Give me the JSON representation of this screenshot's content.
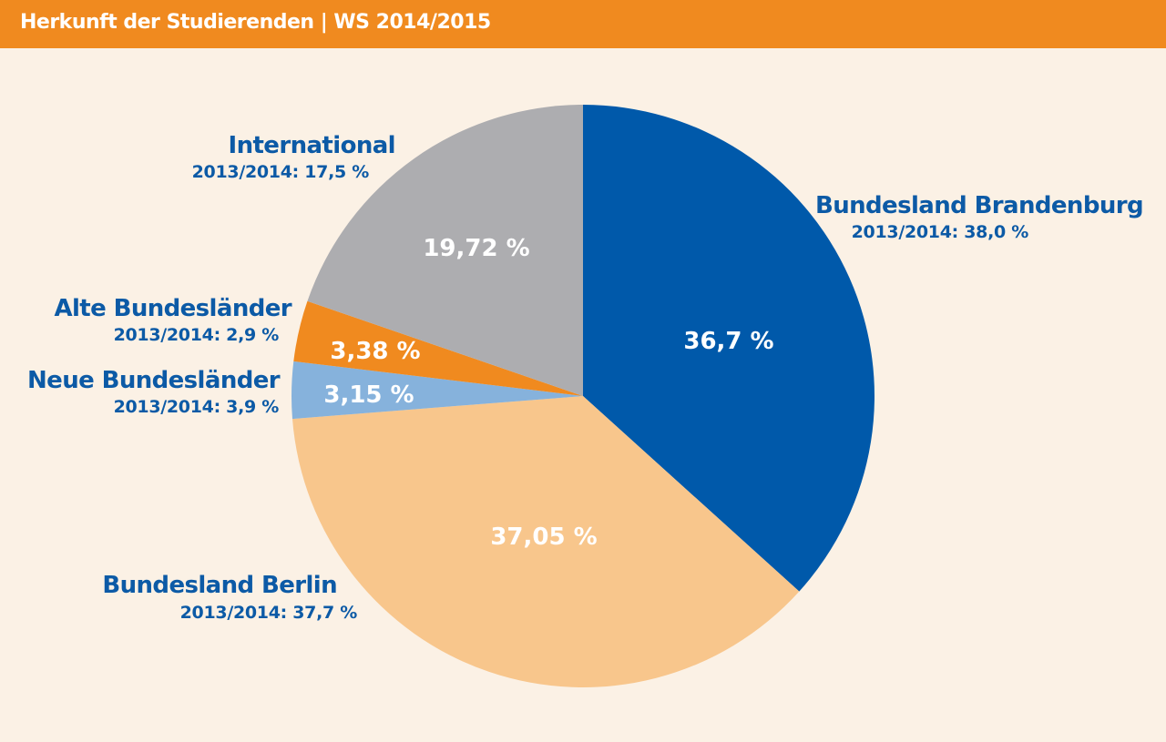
{
  "header": {
    "title": "Herkunft der Studierenden | WS 2014/2015"
  },
  "colors": {
    "header_bg": "#f08a1f",
    "background": "#fbf1e5",
    "label_text": "#0c5aa6",
    "value_text": "#ffffff"
  },
  "chart_data": {
    "type": "pie",
    "title": "Herkunft der Studierenden | WS 2014/2015",
    "start_angle_deg": 0,
    "direction": "clockwise",
    "slices": [
      {
        "name": "Bundesland Brandenburg",
        "value": 36.7,
        "label": "36,7 %",
        "prev_label": "2013/2014: 38,0 %",
        "color": "#0059aa"
      },
      {
        "name": "Bundesland Berlin",
        "value": 37.05,
        "label": "37,05 %",
        "prev_label": "2013/2014: 37,7 %",
        "color": "#f8c68c"
      },
      {
        "name": "Neue Bundesländer",
        "value": 3.15,
        "label": "3,15 %",
        "prev_label": "2013/2014: 3,9 %",
        "color": "#86b2dc"
      },
      {
        "name": "Alte Bundesländer",
        "value": 3.38,
        "label": "3,38 %",
        "prev_label": "2013/2014: 2,9 %",
        "color": "#f08a1f"
      },
      {
        "name": "International",
        "value": 19.72,
        "label": "19,72 %",
        "prev_label": "2013/2014: 17,5 %",
        "color": "#adadb0"
      }
    ]
  }
}
